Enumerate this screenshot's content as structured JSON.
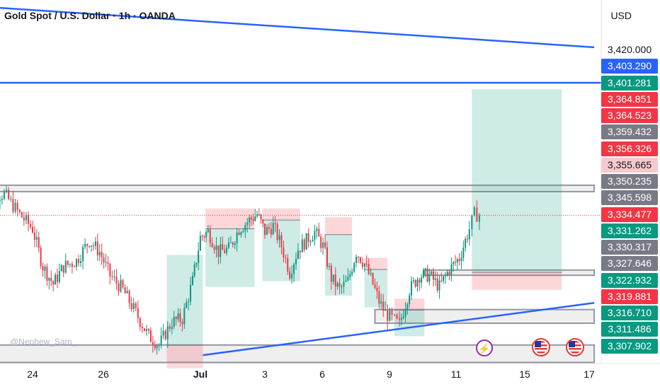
{
  "header": {
    "title": "Gold Spot / U.S. Dollar · 1h · OANDA",
    "currency": "USD"
  },
  "watermark": "@Nephew_Sam_",
  "chart_data": {
    "type": "candlestick",
    "ylim": [
      3305,
      3430
    ],
    "x_ticks": [
      {
        "label": "24",
        "bold": false
      },
      {
        "label": "26",
        "bold": false
      },
      {
        "label": "Jul",
        "bold": true
      },
      {
        "label": "3",
        "bold": false
      },
      {
        "label": "6",
        "bold": false
      },
      {
        "label": "9",
        "bold": false
      },
      {
        "label": "11",
        "bold": false
      },
      {
        "label": "15",
        "bold": false
      },
      {
        "label": "17",
        "bold": false
      }
    ],
    "price_labels": [
      {
        "value": "3,420.000",
        "style": "plain"
      },
      {
        "value": "3,403.290",
        "style": "blue"
      },
      {
        "value": "3,401.281",
        "style": "green"
      },
      {
        "value": "3,364.851",
        "style": "red"
      },
      {
        "value": "3,364.523",
        "style": "red"
      },
      {
        "value": "3,359.432",
        "style": "gray"
      },
      {
        "value": "3,356.326",
        "style": "red"
      },
      {
        "value": "3,355.665",
        "style": "pink"
      },
      {
        "value": "3,350.235",
        "style": "gray"
      },
      {
        "value": "3,345.598",
        "style": "gray"
      },
      {
        "value": "3,334.477",
        "style": "red"
      },
      {
        "value": "3,331.262",
        "style": "green"
      },
      {
        "value": "3,330.317",
        "style": "gray"
      },
      {
        "value": "3,327.646",
        "style": "gray"
      },
      {
        "value": "3,322.932",
        "style": "green"
      },
      {
        "value": "3,319.881",
        "style": "red"
      },
      {
        "value": "3,316.710",
        "style": "green"
      },
      {
        "value": "3,311.486",
        "style": "green"
      },
      {
        "value": "3,307.902",
        "style": "green"
      }
    ],
    "current_price": 3355.665,
    "horizontal_lines": [
      3401.281
    ],
    "trendlines": [
      {
        "name": "upper-trendline",
        "from": {
          "day": 22.0,
          "price": 3427.5
        },
        "to": {
          "day": 17.2,
          "price": 3413.5
        }
      },
      {
        "name": "lower-trendline",
        "from": {
          "day": 30.6,
          "price": 3307.5
        },
        "to": {
          "day": 17.2,
          "price": 3325.5
        }
      }
    ],
    "zones": [
      {
        "name": "top-resistance-zone",
        "day_from": 22.0,
        "day_to": 17.2,
        "low": 3363.8,
        "high": 3366.0
      },
      {
        "name": "mid-zone",
        "day_from": 10.4,
        "day_to": 17.2,
        "low": 3335.0,
        "high": 3336.8
      },
      {
        "name": "lower-support-zone",
        "day_from": 8.3,
        "day_to": 17.2,
        "low": 3318.5,
        "high": 3323.2
      },
      {
        "name": "bottom-zone",
        "day_from": 22.0,
        "day_to": 17.2,
        "low": 3305.0,
        "high": 3311.0
      }
    ],
    "positions": [
      {
        "name": "long-position-1",
        "day_from": 29.2,
        "day_to": 30.6,
        "entry": 3311.0,
        "target": 3342.0,
        "stop": 3303.0
      },
      {
        "name": "short-position-1",
        "day_from": 30.7,
        "day_to": 32.6,
        "entry": 3351.0,
        "target": 3331.0,
        "stop": 3358.0
      },
      {
        "name": "short-position-2",
        "day_from": 2.9,
        "day_to": 4.7,
        "entry": 3354.0,
        "target": 3333.0,
        "stop": 3358.0
      },
      {
        "name": "short-position-3",
        "day_from": 5.9,
        "day_to": 7.2,
        "entry": 3349.0,
        "target": 3328.0,
        "stop": 3355.0
      },
      {
        "name": "short-position-4",
        "day_from": 7.8,
        "day_to": 8.9,
        "entry": 3337.0,
        "target": 3324.0,
        "stop": 3341.0
      },
      {
        "name": "long-position-2",
        "day_from": 9.2,
        "day_to": 10.4,
        "entry": 3323.0,
        "target": 3314.0,
        "stop": 3327.0,
        "short": true
      },
      {
        "name": "long-position-3",
        "day_from": 12.3,
        "day_to": 15.9,
        "entry": 3336.0,
        "target": 3399.0,
        "stop": 3330.0
      }
    ],
    "price_path": [
      [
        22.0,
        3362
      ],
      [
        22.9,
        3363
      ],
      [
        23.5,
        3356
      ],
      [
        24.0,
        3351
      ],
      [
        24.4,
        3338
      ],
      [
        24.8,
        3332
      ],
      [
        25.2,
        3338
      ],
      [
        25.7,
        3340
      ],
      [
        26.2,
        3347
      ],
      [
        26.6,
        3343
      ],
      [
        27.0,
        3335
      ],
      [
        27.5,
        3330
      ],
      [
        28.0,
        3322
      ],
      [
        28.5,
        3314
      ],
      [
        28.9,
        3311
      ],
      [
        29.4,
        3319
      ],
      [
        29.8,
        3320
      ],
      [
        30.2,
        3333
      ],
      [
        30.5,
        3348
      ],
      [
        30.8,
        3350
      ],
      [
        31.2,
        3343
      ],
      [
        1.6,
        3344
      ],
      [
        2.0,
        3351
      ],
      [
        2.4,
        3354
      ],
      [
        2.7,
        3356
      ],
      [
        3.0,
        3350
      ],
      [
        3.4,
        3352
      ],
      [
        3.8,
        3345
      ],
      [
        4.2,
        3336
      ],
      [
        4.6,
        3344
      ],
      [
        5.0,
        3347
      ],
      [
        5.4,
        3350
      ],
      [
        5.8,
        3345
      ],
      [
        6.2,
        3334
      ],
      [
        6.6,
        3330
      ],
      [
        7.0,
        3333
      ],
      [
        7.4,
        3343
      ],
      [
        7.8,
        3339
      ],
      [
        8.2,
        3332
      ],
      [
        8.5,
        3326
      ],
      [
        8.8,
        3322
      ],
      [
        9.1,
        3320
      ],
      [
        9.4,
        3318
      ],
      [
        9.8,
        3330
      ],
      [
        10.2,
        3335
      ],
      [
        10.6,
        3335
      ],
      [
        11.0,
        3331
      ],
      [
        11.4,
        3337
      ],
      [
        11.8,
        3341
      ],
      [
        12.2,
        3351
      ],
      [
        12.4,
        3356
      ],
      [
        12.6,
        3355.7
      ]
    ],
    "events": [
      {
        "name": "bolt-event-icon",
        "day": 11.3
      },
      {
        "name": "us-flag-event-icon",
        "day": 14.1
      },
      {
        "name": "us-flag-event-icon",
        "day": 16.0
      }
    ]
  }
}
